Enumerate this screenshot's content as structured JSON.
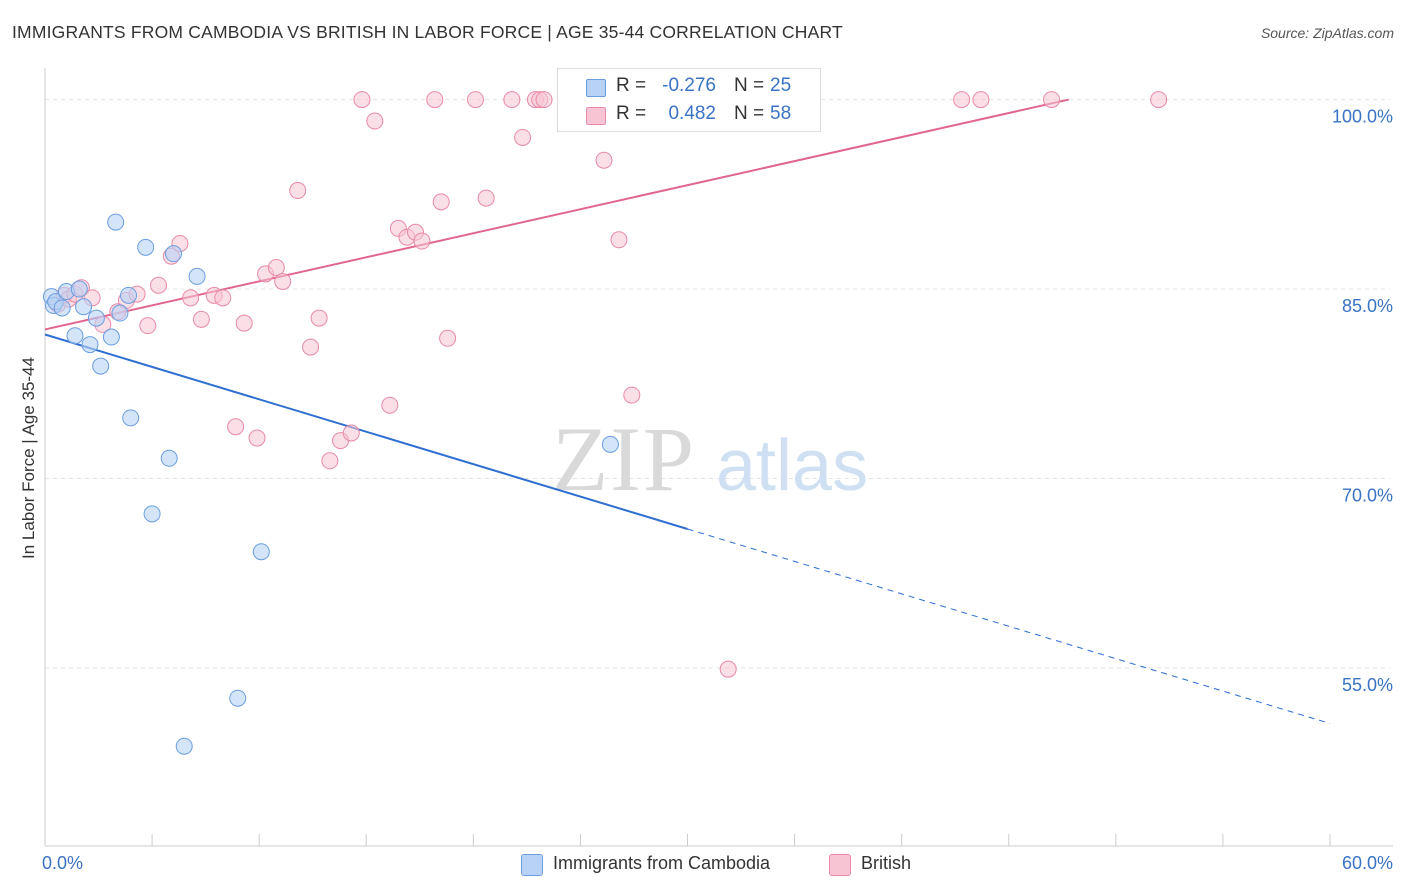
{
  "header": {
    "title": "IMMIGRANTS FROM CAMBODIA VS BRITISH IN LABOR FORCE | AGE 35-44 CORRELATION CHART",
    "source": "Source: ZipAtlas.com"
  },
  "watermark": {
    "zip": "ZIP",
    "atlas": "atlas"
  },
  "legend_top": {
    "series1": {
      "r_label": "R =",
      "r_value": "-0.276",
      "n_label": "N =",
      "n_value": "25"
    },
    "series2": {
      "r_label": "R =",
      "r_value": "0.482",
      "n_label": "N =",
      "n_value": "58"
    }
  },
  "legend_bottom": {
    "series1": "Immigrants from Cambodia",
    "series2": "British"
  },
  "colors": {
    "cambodia_fill": "#b8d2f5",
    "cambodia_stroke": "#6a9ee0",
    "cambodia_line": "#2f6fd0",
    "british_fill": "#f7c4d4",
    "british_stroke": "#e88aa8",
    "british_line": "#e0668e",
    "tick_label": "#3a73c4",
    "grid": "#e4e4e4"
  },
  "chart_data": {
    "type": "scatter",
    "title": "IMMIGRANTS FROM CAMBODIA VS BRITISH IN LABOR FORCE | AGE 35-44 CORRELATION CHART",
    "xlabel": "",
    "ylabel": "In Labor Force | Age 35-44",
    "xlim": [
      0,
      60
    ],
    "ylim": [
      40.9,
      102.5
    ],
    "x_tick_labels": [
      {
        "value": 0,
        "label": "0.0%"
      },
      {
        "value": 60,
        "label": "60.0%"
      }
    ],
    "y_tick_labels": [
      {
        "value": 100,
        "label": "100.0%"
      },
      {
        "value": 85,
        "label": "85.0%"
      },
      {
        "value": 70,
        "label": "70.0%"
      },
      {
        "value": 55,
        "label": "55.0%"
      }
    ],
    "series": [
      {
        "name": "Immigrants from Cambodia",
        "R": -0.276,
        "N": 25,
        "points": [
          [
            0.3,
            84.4
          ],
          [
            0.4,
            83.7
          ],
          [
            0.5,
            84.0
          ],
          [
            0.8,
            83.5
          ],
          [
            1.0,
            84.8
          ],
          [
            1.4,
            81.3
          ],
          [
            1.6,
            85.0
          ],
          [
            1.8,
            83.6
          ],
          [
            2.1,
            80.6
          ],
          [
            2.4,
            82.7
          ],
          [
            2.6,
            78.9
          ],
          [
            3.1,
            81.2
          ],
          [
            3.3,
            90.3
          ],
          [
            3.5,
            83.1
          ],
          [
            3.9,
            84.5
          ],
          [
            4.0,
            74.8
          ],
          [
            4.7,
            88.3
          ],
          [
            5.0,
            67.2
          ],
          [
            5.8,
            71.6
          ],
          [
            6.0,
            87.8
          ],
          [
            6.5,
            48.8
          ],
          [
            7.1,
            86.0
          ],
          [
            9.0,
            52.6
          ],
          [
            10.1,
            64.2
          ],
          [
            26.4,
            72.7
          ]
        ],
        "trend": {
          "x0": 0,
          "y0": 81.4,
          "x1": 30.0,
          "y1": 66.0,
          "dashed_to_x": 60,
          "dashed_to_y": 50.6
        }
      },
      {
        "name": "British",
        "R": 0.482,
        "N": 58,
        "points": [
          [
            0.6,
            83.8
          ],
          [
            0.9,
            84.5
          ],
          [
            1.1,
            84.2
          ],
          [
            1.4,
            84.6
          ],
          [
            1.7,
            85.1
          ],
          [
            2.2,
            84.3
          ],
          [
            2.7,
            82.2
          ],
          [
            3.4,
            83.2
          ],
          [
            3.8,
            84.1
          ],
          [
            4.3,
            84.6
          ],
          [
            4.8,
            82.1
          ],
          [
            5.3,
            85.3
          ],
          [
            5.9,
            87.6
          ],
          [
            6.3,
            88.6
          ],
          [
            6.8,
            84.3
          ],
          [
            7.3,
            82.6
          ],
          [
            7.9,
            84.5
          ],
          [
            8.3,
            84.3
          ],
          [
            8.9,
            74.1
          ],
          [
            9.3,
            82.3
          ],
          [
            9.9,
            73.2
          ],
          [
            10.3,
            86.2
          ],
          [
            10.8,
            86.7
          ],
          [
            11.1,
            85.6
          ],
          [
            11.8,
            92.8
          ],
          [
            12.4,
            80.4
          ],
          [
            12.8,
            82.7
          ],
          [
            13.3,
            71.4
          ],
          [
            13.8,
            73.0
          ],
          [
            14.3,
            73.6
          ],
          [
            14.8,
            100.0
          ],
          [
            15.4,
            98.3
          ],
          [
            16.1,
            75.8
          ],
          [
            16.5,
            89.8
          ],
          [
            16.9,
            89.1
          ],
          [
            17.3,
            89.5
          ],
          [
            17.6,
            88.8
          ],
          [
            18.2,
            100.0
          ],
          [
            18.5,
            91.9
          ],
          [
            18.8,
            81.1
          ],
          [
            20.1,
            100.0
          ],
          [
            20.6,
            92.2
          ],
          [
            21.8,
            100.0
          ],
          [
            22.3,
            97.0
          ],
          [
            22.9,
            100.0
          ],
          [
            23.1,
            100.0
          ],
          [
            23.3,
            100.0
          ],
          [
            24.8,
            100.0
          ],
          [
            26.1,
            95.2
          ],
          [
            26.8,
            88.9
          ],
          [
            27.4,
            76.6
          ],
          [
            29.9,
            100.0
          ],
          [
            31.9,
            54.9
          ],
          [
            35.7,
            100.0
          ],
          [
            42.8,
            100.0
          ],
          [
            43.7,
            100.0
          ],
          [
            47.0,
            100.0
          ],
          [
            52.0,
            100.0
          ]
        ],
        "trend": {
          "x0": 0,
          "y0": 81.8,
          "x1": 47.8,
          "y1": 100.0
        }
      }
    ]
  }
}
